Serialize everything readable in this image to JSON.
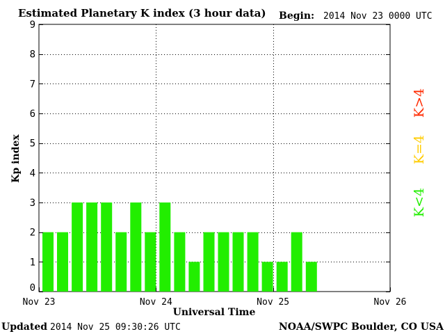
{
  "header": {
    "title": "Estimated Planetary K index (3 hour data)",
    "begin_label": "Begin:",
    "begin_value": "2014 Nov 23 0000 UTC"
  },
  "footer": {
    "updated_label": "Updated",
    "updated_value": "2014 Nov 25 09:30:26 UTC",
    "source": "NOAA/SWPC Boulder, CO USA"
  },
  "legend": {
    "above": {
      "label": "K>4",
      "color": "#ff2a00"
    },
    "equal": {
      "label": "K=4",
      "color": "#ffcc00"
    },
    "below": {
      "label": "K<4",
      "color": "#22ee00"
    }
  },
  "chart_data": {
    "type": "bar",
    "title": "Estimated Planetary K index (3 hour data)",
    "xlabel": "Universal Time",
    "ylabel": "Kp index",
    "ylim": [
      0,
      9
    ],
    "yticks": [
      0,
      1,
      2,
      3,
      4,
      5,
      6,
      7,
      8,
      9
    ],
    "xticks": [
      {
        "label": "Nov 23",
        "day": 0
      },
      {
        "label": "Nov 24",
        "day": 1
      },
      {
        "label": "Nov 25",
        "day": 2
      },
      {
        "label": "Nov 26",
        "day": 3
      }
    ],
    "interval_hours": 3,
    "values": [
      2,
      2,
      3,
      3,
      3,
      2,
      3,
      2,
      3,
      2,
      1,
      2,
      2,
      2,
      2,
      1,
      1,
      2,
      1
    ],
    "bar_color": "#22ee00",
    "grid": true
  }
}
